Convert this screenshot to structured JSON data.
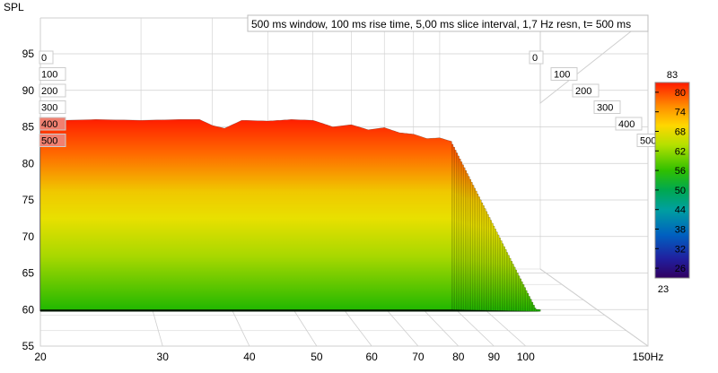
{
  "chart_data": {
    "type": "waterfall",
    "title": "500 ms window, 100 ms rise time, 5,00 ms slice interval, 1,7 Hz resn, t= 500 ms",
    "ylabel": "SPL",
    "xunit": "Hz",
    "y_ticks": [
      "95",
      "90",
      "85",
      "80",
      "75",
      "70",
      "65",
      "60",
      "55"
    ],
    "y_tick_values": [
      95,
      90,
      85,
      80,
      75,
      70,
      65,
      60,
      55
    ],
    "ylim": [
      55,
      99
    ],
    "x_ticks": [
      "20",
      "30",
      "40",
      "50",
      "60",
      "70",
      "80",
      "90",
      "100",
      "150Hz"
    ],
    "x_tick_values": [
      20,
      30,
      40,
      50,
      60,
      70,
      80,
      90,
      100,
      150
    ],
    "xlim": [
      20,
      150
    ],
    "x_scale": "log",
    "time_ticks_left": [
      "0",
      "100",
      "200",
      "300",
      "400",
      "500"
    ],
    "time_ticks_right": [
      "0",
      "100",
      "200",
      "300",
      "400",
      "500"
    ],
    "time_ms_values": [
      0,
      100,
      200,
      300,
      400,
      500
    ],
    "colorbar": {
      "min_label": "23",
      "max_label": "83",
      "ticks": [
        "80",
        "74",
        "68",
        "62",
        "56",
        "50",
        "44",
        "38",
        "32",
        "26"
      ],
      "range": [
        23,
        83
      ]
    },
    "grid": true,
    "initial_response": {
      "freq_hz": [
        20,
        22,
        25,
        30,
        35,
        38,
        40,
        42,
        45,
        50,
        55,
        60,
        65,
        70,
        75,
        80,
        85,
        90,
        95,
        100,
        105
      ],
      "spl_db": [
        85.8,
        85.9,
        86.0,
        85.9,
        86.0,
        86.0,
        85.2,
        84.8,
        85.9,
        85.8,
        86.0,
        85.9,
        85.0,
        85.3,
        84.6,
        84.9,
        84.2,
        84.0,
        83.4,
        83.5,
        83.0
      ]
    },
    "ridges": [
      {
        "name": "",
        "freq_hz": 42,
        "note": ""
      },
      {
        "name": "",
        "freq_hz": 70,
        "note": ""
      }
    ]
  },
  "colors": {
    "grid": "#cfcfcf",
    "frame": "#9a9a9a",
    "label_bg": "#ffffff",
    "hot": "#ff2000",
    "mid": "#e6d400",
    "cool": "#18b000",
    "colorbar_stops": [
      "#ff1a00",
      "#ff8c00",
      "#ffd700",
      "#b4e000",
      "#30c000",
      "#00a850",
      "#00a0a0",
      "#0060c0",
      "#2020a0",
      "#300060"
    ]
  }
}
